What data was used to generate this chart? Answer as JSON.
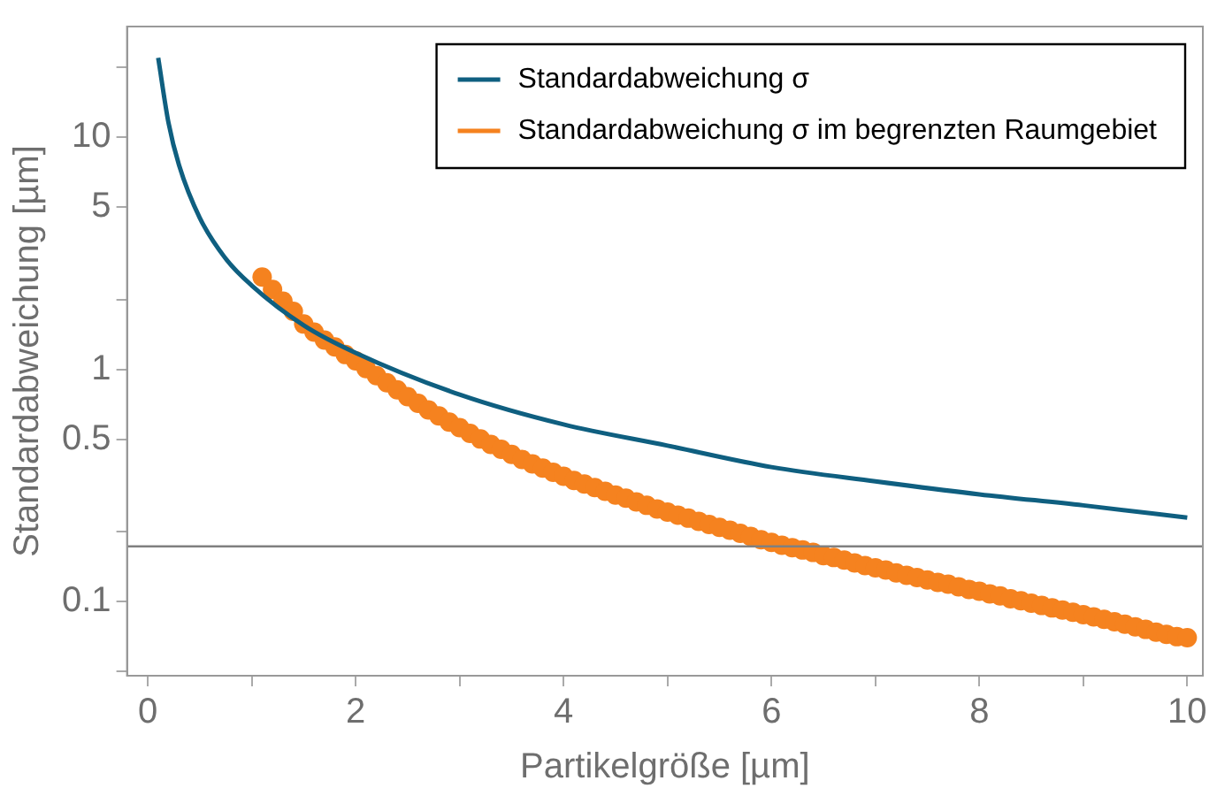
{
  "chart_data": {
    "type": "line",
    "xlabel": "Partikelgröße [µm]",
    "ylabel": "Standardabweichung [µm]",
    "log": "y",
    "grid": false,
    "legend": "top right",
    "xlim": [
      -0.2,
      10.15
    ],
    "ylim": [
      0.048,
      30
    ],
    "xticks": [
      0,
      {
        "value": 1,
        "label": null
      },
      2,
      {
        "value": 3,
        "label": null
      },
      4,
      {
        "value": 5,
        "label": null
      },
      6,
      {
        "value": 7,
        "label": null
      },
      8,
      {
        "value": 9,
        "label": null
      },
      10
    ],
    "yticks": [
      {
        "value": 0.05,
        "label": null
      },
      0.1,
      {
        "value": 0.2,
        "label": null
      },
      0.5,
      1,
      {
        "value": 2,
        "label": null
      },
      5,
      10,
      {
        "value": 20,
        "label": null
      }
    ],
    "ref_lines": [
      {
        "axis": "y",
        "value": 0.173,
        "color": "#808080"
      }
    ],
    "series": [
      {
        "name": "Standardabweichung σ",
        "color": "#0f5f80",
        "marker": "none",
        "x": [
          0.1,
          0.2,
          0.3,
          0.5,
          0.75,
          1,
          1.5,
          2,
          3,
          4,
          5,
          6,
          7,
          8,
          9,
          10
        ],
        "values": [
          22,
          11.5,
          7.6,
          4.5,
          3.0,
          2.3,
          1.55,
          1.18,
          0.78,
          0.58,
          0.47,
          0.38,
          0.33,
          0.29,
          0.26,
          0.23
        ]
      },
      {
        "name": "Standardabweichung σ im begrenzten Raumgebiet",
        "type": "scatter",
        "color": "#f5821f",
        "marker": "circle",
        "x": [
          1.1,
          1.2,
          1.3,
          1.4,
          1.5,
          1.6,
          1.7,
          1.8,
          1.9,
          2.0,
          2.1,
          2.2,
          2.3,
          2.4,
          2.5,
          2.6,
          2.7,
          2.8,
          2.9,
          3.0,
          3.1,
          3.2,
          3.3,
          3.4,
          3.5,
          3.6,
          3.7,
          3.8,
          3.9,
          4.0,
          4.1,
          4.2,
          4.3,
          4.4,
          4.5,
          4.6,
          4.7,
          4.8,
          4.9,
          5.0,
          5.1,
          5.2,
          5.3,
          5.4,
          5.5,
          5.6,
          5.7,
          5.8,
          5.9,
          6.0,
          6.1,
          6.2,
          6.3,
          6.4,
          6.5,
          6.6,
          6.7,
          6.8,
          6.9,
          7.0,
          7.1,
          7.2,
          7.3,
          7.4,
          7.5,
          7.6,
          7.7,
          7.8,
          7.9,
          8.0,
          8.1,
          8.2,
          8.3,
          8.4,
          8.5,
          8.6,
          8.7,
          8.8,
          8.9,
          9.0,
          9.1,
          9.2,
          9.3,
          9.4,
          9.5,
          9.6,
          9.7,
          9.8,
          9.9,
          10.0
        ],
        "values": [
          2.5,
          2.21,
          1.97,
          1.78,
          1.57,
          1.45,
          1.34,
          1.25,
          1.16,
          1.09,
          1.01,
          0.94,
          0.877,
          0.818,
          0.764,
          0.715,
          0.67,
          0.631,
          0.594,
          0.562,
          0.531,
          0.502,
          0.476,
          0.453,
          0.431,
          0.41,
          0.392,
          0.376,
          0.361,
          0.347,
          0.333,
          0.321,
          0.31,
          0.299,
          0.288,
          0.279,
          0.269,
          0.26,
          0.251,
          0.243,
          0.236,
          0.229,
          0.222,
          0.215,
          0.209,
          0.203,
          0.197,
          0.191,
          0.185,
          0.18,
          0.175,
          0.171,
          0.167,
          0.163,
          0.158,
          0.155,
          0.151,
          0.147,
          0.143,
          0.14,
          0.137,
          0.133,
          0.13,
          0.127,
          0.124,
          0.121,
          0.119,
          0.116,
          0.113,
          0.111,
          0.108,
          0.106,
          0.103,
          0.101,
          0.0986,
          0.0963,
          0.094,
          0.092,
          0.09,
          0.088,
          0.086,
          0.084,
          0.082,
          0.08,
          0.078,
          0.076,
          0.074,
          0.0724,
          0.0707,
          0.07
        ]
      }
    ]
  }
}
